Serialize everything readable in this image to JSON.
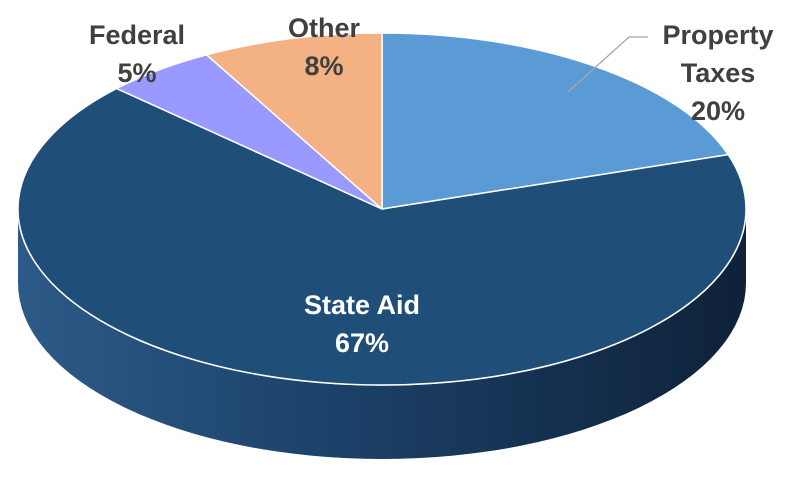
{
  "chart_data": {
    "type": "pie",
    "style": "3d",
    "title": "",
    "slices": [
      {
        "name": "Property Taxes",
        "value": 20,
        "value_label": "20%",
        "color": "#5b9bd5"
      },
      {
        "name": "State Aid",
        "value": 67,
        "value_label": "67%",
        "color": "#1f4e79"
      },
      {
        "name": "Federal",
        "value": 5,
        "value_label": "5%",
        "color": "#9999ff"
      },
      {
        "name": "Other",
        "value": 8,
        "value_label": "8%",
        "color": "#f4b183"
      }
    ],
    "label_colors": {
      "outside": "#404040",
      "inside": "#ffffff"
    },
    "leader_line_color": "#a6a6a6"
  }
}
